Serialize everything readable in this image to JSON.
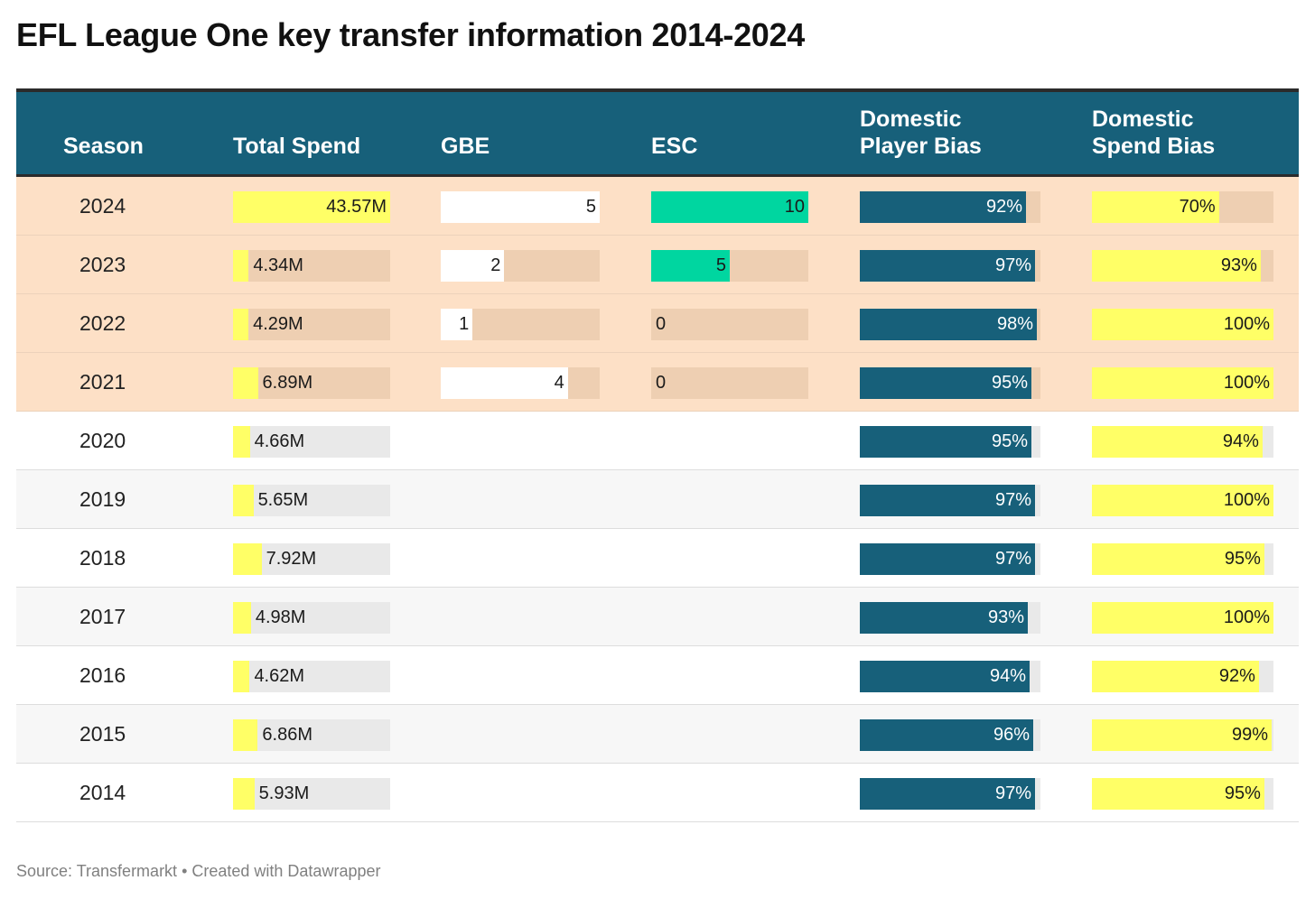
{
  "title": "EFL League One key transfer information 2014-2024",
  "footer": {
    "source": "Source: Transfermarkt",
    "separator": " • ",
    "credit": "Created with Datawrapper"
  },
  "colors": {
    "header_bg": "#17607a",
    "highlight_row": "#fde0c6",
    "spend_fill": "#ffff66",
    "gbe_fill": "#ffffff",
    "esc_fill": "#00d6a0",
    "player_bias_fill": "#17607a",
    "spend_bias_fill": "#ffff66",
    "track_highlight": "#eecfb2",
    "track_plain": "#e9e9e9"
  },
  "chart_data": {
    "type": "table",
    "columns": [
      "Season",
      "Total Spend",
      "GBE",
      "ESC",
      "Domestic Player Bias",
      "Domestic Spend Bias"
    ],
    "header_lines": {
      "season": [
        "Season"
      ],
      "total_spend": [
        "Total Spend"
      ],
      "gbe": [
        "GBE"
      ],
      "esc": [
        "ESC"
      ],
      "player_bias": [
        "Domestic",
        "Player Bias"
      ],
      "spend_bias": [
        "Domestic",
        "Spend Bias"
      ]
    },
    "scales": {
      "total_spend_max": 43.57,
      "gbe_max": 5,
      "esc_max": 10,
      "player_bias_max": 100,
      "spend_bias_max": 100
    },
    "rows": [
      {
        "season": "2024",
        "total_spend": 43.57,
        "total_spend_label": "43.57M",
        "gbe": 5,
        "gbe_label": "5",
        "esc": 10,
        "esc_label": "10",
        "player_bias": 92,
        "player_bias_label": "92%",
        "spend_bias": 70,
        "spend_bias_label": "70%",
        "highlight": true
      },
      {
        "season": "2023",
        "total_spend": 4.34,
        "total_spend_label": "4.34M",
        "gbe": 2,
        "gbe_label": "2",
        "esc": 5,
        "esc_label": "5",
        "player_bias": 97,
        "player_bias_label": "97%",
        "spend_bias": 93,
        "spend_bias_label": "93%",
        "highlight": true
      },
      {
        "season": "2022",
        "total_spend": 4.29,
        "total_spend_label": "4.29M",
        "gbe": 1,
        "gbe_label": "1",
        "esc": 0,
        "esc_label": "0",
        "player_bias": 98,
        "player_bias_label": "98%",
        "spend_bias": 100,
        "spend_bias_label": "100%",
        "highlight": true
      },
      {
        "season": "2021",
        "total_spend": 6.89,
        "total_spend_label": "6.89M",
        "gbe": 4,
        "gbe_label": "4",
        "esc": 0,
        "esc_label": "0",
        "player_bias": 95,
        "player_bias_label": "95%",
        "spend_bias": 100,
        "spend_bias_label": "100%",
        "highlight": true
      },
      {
        "season": "2020",
        "total_spend": 4.66,
        "total_spend_label": "4.66M",
        "gbe": null,
        "esc": null,
        "player_bias": 95,
        "player_bias_label": "95%",
        "spend_bias": 94,
        "spend_bias_label": "94%",
        "highlight": false
      },
      {
        "season": "2019",
        "total_spend": 5.65,
        "total_spend_label": "5.65M",
        "gbe": null,
        "esc": null,
        "player_bias": 97,
        "player_bias_label": "97%",
        "spend_bias": 100,
        "spend_bias_label": "100%",
        "highlight": false
      },
      {
        "season": "2018",
        "total_spend": 7.92,
        "total_spend_label": "7.92M",
        "gbe": null,
        "esc": null,
        "player_bias": 97,
        "player_bias_label": "97%",
        "spend_bias": 95,
        "spend_bias_label": "95%",
        "highlight": false
      },
      {
        "season": "2017",
        "total_spend": 4.98,
        "total_spend_label": "4.98M",
        "gbe": null,
        "esc": null,
        "player_bias": 93,
        "player_bias_label": "93%",
        "spend_bias": 100,
        "spend_bias_label": "100%",
        "highlight": false
      },
      {
        "season": "2016",
        "total_spend": 4.62,
        "total_spend_label": "4.62M",
        "gbe": null,
        "esc": null,
        "player_bias": 94,
        "player_bias_label": "94%",
        "spend_bias": 92,
        "spend_bias_label": "92%",
        "highlight": false
      },
      {
        "season": "2015",
        "total_spend": 6.86,
        "total_spend_label": "6.86M",
        "gbe": null,
        "esc": null,
        "player_bias": 96,
        "player_bias_label": "96%",
        "spend_bias": 99,
        "spend_bias_label": "99%",
        "highlight": false
      },
      {
        "season": "2014",
        "total_spend": 5.93,
        "total_spend_label": "5.93M",
        "gbe": null,
        "esc": null,
        "player_bias": 97,
        "player_bias_label": "97%",
        "spend_bias": 95,
        "spend_bias_label": "95%",
        "highlight": false
      }
    ]
  }
}
